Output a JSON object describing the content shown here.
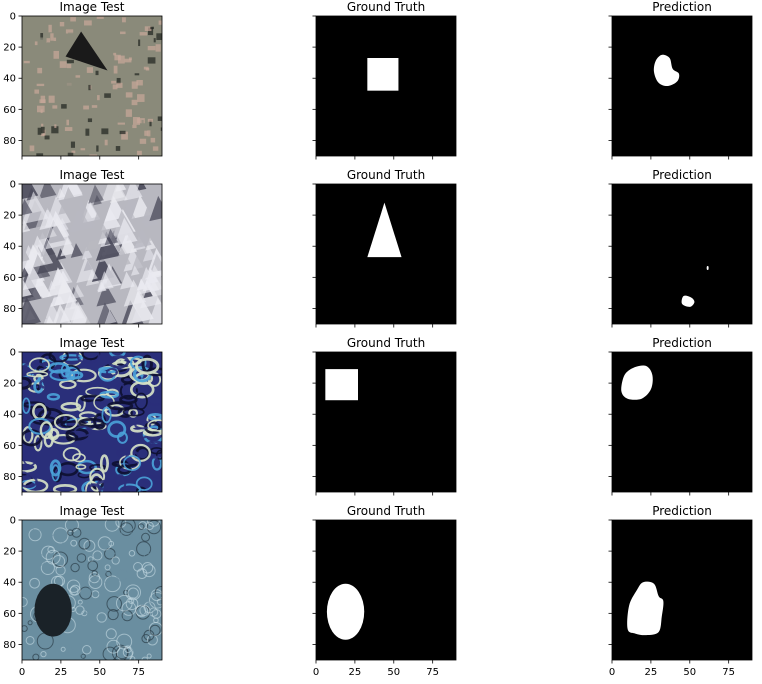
{
  "chart_data": {
    "type": "image-grid",
    "columns": [
      "Image Test",
      "Ground Truth",
      "Prediction"
    ],
    "xlim": [
      0,
      90
    ],
    "ylim": [
      90,
      0
    ],
    "xticks": [
      0,
      25,
      50,
      75
    ],
    "yticks": [
      0,
      20,
      40,
      60,
      80
    ],
    "shared_y_ticks_only_first_column": true,
    "rows": [
      {
        "texture": {
          "kind": "granite",
          "base": "#8a8a7a",
          "accent": "#c9a89a",
          "dark": "#1f2420",
          "object": {
            "shape": "triangle",
            "points": [
              [
                28,
                26
              ],
              [
                55,
                35
              ],
              [
                38,
                10
              ]
            ],
            "color": "#1a1a1a"
          }
        },
        "ground_truth": {
          "shape": "rect",
          "x": 33,
          "y": 27,
          "w": 20,
          "h": 21
        },
        "prediction": [
          {
            "shape": "blob",
            "points": [
              [
                32,
                25
              ],
              [
                37,
                27
              ],
              [
                39,
                34
              ],
              [
                43,
                37
              ],
              [
                42,
                42
              ],
              [
                36,
                45
              ],
              [
                30,
                43
              ],
              [
                27,
                36
              ],
              [
                28,
                29
              ]
            ]
          }
        ]
      },
      {
        "texture": {
          "kind": "crystal",
          "base": "#b8b8c0",
          "accent": "#eaeaf0",
          "dark": "#4a4a5a"
        },
        "ground_truth": {
          "shape": "triangle",
          "points": [
            [
              44,
              12
            ],
            [
              33,
              47
            ],
            [
              55,
              47
            ]
          ]
        },
        "prediction": [
          {
            "shape": "blob",
            "points": [
              [
                46,
                72
              ],
              [
                51,
                73
              ],
              [
                53,
                76
              ],
              [
                50,
                79
              ],
              [
                45,
                77
              ]
            ]
          },
          {
            "shape": "blob",
            "points": [
              [
                61,
                53
              ],
              [
                62,
                53
              ],
              [
                62,
                55
              ],
              [
                61,
                55
              ]
            ]
          }
        ]
      },
      {
        "texture": {
          "kind": "paisley",
          "base": "#2a2f7a",
          "accent": "#4aa3d9",
          "dark": "#0d1030",
          "light": "#d8e4c8"
        },
        "ground_truth": {
          "shape": "rect",
          "x": 6,
          "y": 11,
          "w": 21,
          "h": 20
        },
        "prediction": [
          {
            "shape": "blob",
            "points": [
              [
                14,
                10
              ],
              [
                22,
                9
              ],
              [
                26,
                15
              ],
              [
                25,
                24
              ],
              [
                19,
                30
              ],
              [
                10,
                30
              ],
              [
                6,
                25
              ],
              [
                8,
                15
              ]
            ]
          }
        ]
      },
      {
        "texture": {
          "kind": "leather",
          "base": "#6a8ea0",
          "accent": "#c8dce4",
          "dark": "#22303a",
          "object": {
            "shape": "ellipse",
            "cx": 20,
            "cy": 58,
            "rx": 12,
            "ry": 17,
            "color": "#1a2228"
          }
        },
        "ground_truth": {
          "shape": "ellipse",
          "cx": 19,
          "cy": 59,
          "rx": 12,
          "ry": 18
        },
        "prediction": [
          {
            "shape": "blob",
            "points": [
              [
                20,
                40
              ],
              [
                27,
                41
              ],
              [
                30,
                49
              ],
              [
                33,
                52
              ],
              [
                32,
                62
              ],
              [
                30,
                72
              ],
              [
                22,
                74
              ],
              [
                15,
                73
              ],
              [
                10,
                70
              ],
              [
                11,
                55
              ],
              [
                16,
                45
              ]
            ]
          }
        ]
      }
    ]
  }
}
